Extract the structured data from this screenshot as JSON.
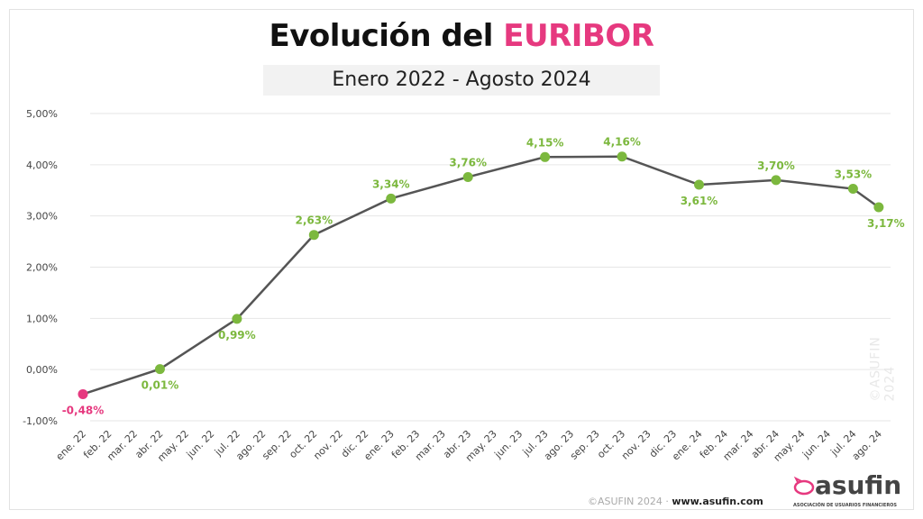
{
  "header": {
    "title_prefix": "Evolución del ",
    "title_highlight": "EURIBOR",
    "subtitle": "Enero 2022 - Agosto 2024"
  },
  "footer": {
    "copyright": "©ASUFIN 2024",
    "url": "www.asufin.com",
    "logo_name": "asufin",
    "logo_sub": "ASOCIACIÓN DE USUARIOS FINANCIEROS",
    "watermark": "©ASUFIN 2024"
  },
  "chart_data": {
    "type": "line",
    "title": "Evolución del EURIBOR",
    "subtitle": "Enero 2022 - Agosto 2024",
    "categories": [
      "ene. 22",
      "feb. 22",
      "mar. 22",
      "abr. 22",
      "may. 22",
      "jun. 22",
      "jul. 22",
      "ago. 22",
      "sep. 22",
      "oct. 22",
      "nov. 22",
      "dic. 22",
      "ene. 23",
      "feb. 23",
      "mar. 23",
      "abr. 23",
      "may. 23",
      "jun. 23",
      "jul. 23",
      "ago. 23",
      "sep. 23",
      "oct. 23",
      "nov. 23",
      "dic. 23",
      "ene. 24",
      "feb. 24",
      "mar. 24",
      "abr. 24",
      "may. 24",
      "jun. 24",
      "jul. 24",
      "ago. 24"
    ],
    "points": [
      {
        "x": "ene. 22",
        "y": -0.48,
        "label": "-0,48%"
      },
      {
        "x": "abr. 22",
        "y": 0.01,
        "label": "0,01%"
      },
      {
        "x": "jul. 22",
        "y": 0.99,
        "label": "0,99%"
      },
      {
        "x": "oct. 22",
        "y": 2.63,
        "label": "2,63%"
      },
      {
        "x": "ene. 23",
        "y": 3.34,
        "label": "3,34%"
      },
      {
        "x": "abr. 23",
        "y": 3.76,
        "label": "3,76%"
      },
      {
        "x": "jul. 23",
        "y": 4.15,
        "label": "4,15%"
      },
      {
        "x": "oct. 23",
        "y": 4.16,
        "label": "4,16%"
      },
      {
        "x": "ene. 24",
        "y": 3.61,
        "label": "3,61%"
      },
      {
        "x": "abr. 24",
        "y": 3.7,
        "label": "3,70%"
      },
      {
        "x": "jul. 24",
        "y": 3.53,
        "label": "3,53%"
      },
      {
        "x": "ago. 24",
        "y": 3.17,
        "label": "3,17%"
      }
    ],
    "yticks": [
      "-1,00%",
      "0,00%",
      "1,00%",
      "2,00%",
      "3,00%",
      "4,00%",
      "5,00%"
    ],
    "ylim": [
      -1,
      5
    ],
    "grid": true,
    "colors": {
      "line": "#555555",
      "positive": "#7cb83e",
      "negative": "#e6397f",
      "grid": "#e6e6e6"
    }
  }
}
